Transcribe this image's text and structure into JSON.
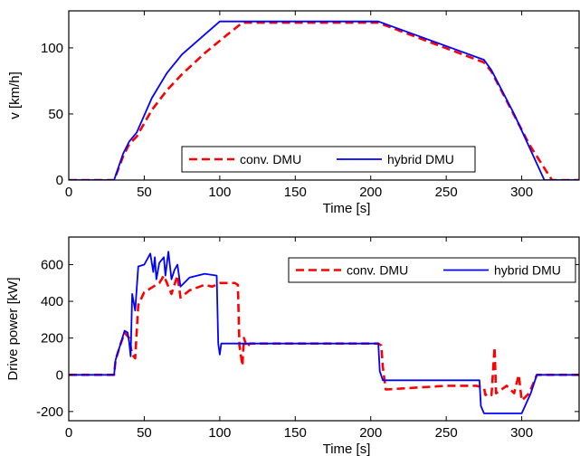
{
  "colors": {
    "conv": "#ff0000",
    "hybrid": "#0000ff",
    "axis": "#000000"
  },
  "chart_data": [
    {
      "type": "line",
      "xlabel": "Time [s]",
      "ylabel": "v [km/h]",
      "xlim": [
        0,
        338
      ],
      "ylim": [
        0,
        128
      ],
      "xticks": [
        0,
        50,
        100,
        150,
        200,
        250,
        300
      ],
      "yticks": [
        0,
        50,
        100
      ],
      "grid": false,
      "legend": "bottom-center",
      "series": [
        {
          "name": "conv. DMU",
          "style": "dashed",
          "color": "#ff0000",
          "x": [
            0,
            30,
            33,
            36,
            40,
            45,
            55,
            65,
            75,
            90,
            105,
            115,
            205,
            275,
            280,
            290,
            305,
            320,
            338
          ],
          "y": [
            0,
            0,
            9,
            18,
            27,
            33,
            53,
            68,
            80,
            96,
            110,
            119,
            119,
            89,
            82,
            60,
            27,
            0,
            0
          ]
        },
        {
          "name": "hybrid DMU",
          "style": "solid",
          "color": "#0000ff",
          "x": [
            0,
            30,
            33,
            36,
            40,
            45,
            55,
            65,
            75,
            85,
            100,
            205,
            275,
            280,
            295,
            315,
            338
          ],
          "y": [
            0,
            0,
            10,
            20,
            29,
            36,
            62,
            81,
            95,
            105,
            120,
            120,
            91,
            83,
            50,
            0,
            0
          ]
        }
      ]
    },
    {
      "type": "line",
      "xlabel": "Time [s]",
      "ylabel": "Drive power [kW]",
      "xlim": [
        0,
        338
      ],
      "ylim": [
        -250,
        750
      ],
      "xticks": [
        0,
        50,
        100,
        150,
        200,
        250,
        300
      ],
      "yticks": [
        -200,
        0,
        200,
        400,
        600
      ],
      "grid": false,
      "legend": "top-right",
      "series": [
        {
          "name": "conv. DMU",
          "style": "dashed",
          "color": "#ff0000",
          "x": [
            0,
            30,
            31,
            34,
            37,
            40,
            42,
            44,
            46,
            50,
            56,
            60,
            63,
            66,
            68,
            72,
            74,
            80,
            90,
            95,
            100,
            110,
            112,
            113,
            115,
            116,
            118,
            120,
            205,
            207,
            208,
            210,
            250,
            255,
            270,
            275,
            276,
            278,
            280,
            282,
            283,
            285,
            290,
            295,
            298,
            300,
            305,
            310,
            312,
            338
          ],
          "y": [
            0,
            0,
            80,
            160,
            230,
            200,
            110,
            90,
            380,
            450,
            480,
            500,
            540,
            480,
            440,
            540,
            420,
            460,
            490,
            480,
            500,
            500,
            490,
            160,
            50,
            200,
            150,
            170,
            170,
            160,
            40,
            -80,
            -60,
            -60,
            -60,
            -70,
            -110,
            -100,
            -110,
            150,
            -100,
            -90,
            -60,
            -100,
            0,
            -140,
            -100,
            0,
            0,
            0
          ]
        },
        {
          "name": "hybrid DMU",
          "style": "solid",
          "color": "#0000ff",
          "x": [
            0,
            30,
            31,
            34,
            37,
            39,
            40,
            41,
            42,
            44,
            46,
            50,
            54,
            56,
            57,
            58,
            60,
            63,
            64,
            66,
            68,
            70,
            72,
            74,
            80,
            90,
            98,
            99,
            100,
            101,
            102,
            205,
            206,
            208,
            210,
            272,
            273,
            275,
            280,
            285,
            300,
            306,
            310,
            338
          ],
          "y": [
            0,
            0,
            80,
            160,
            240,
            230,
            180,
            100,
            440,
            350,
            590,
            600,
            660,
            560,
            640,
            520,
            610,
            640,
            540,
            670,
            520,
            570,
            600,
            480,
            530,
            550,
            540,
            170,
            110,
            170,
            170,
            170,
            20,
            -30,
            -30,
            -30,
            -170,
            -210,
            -210,
            -210,
            -210,
            -100,
            0,
            0
          ]
        }
      ]
    }
  ]
}
